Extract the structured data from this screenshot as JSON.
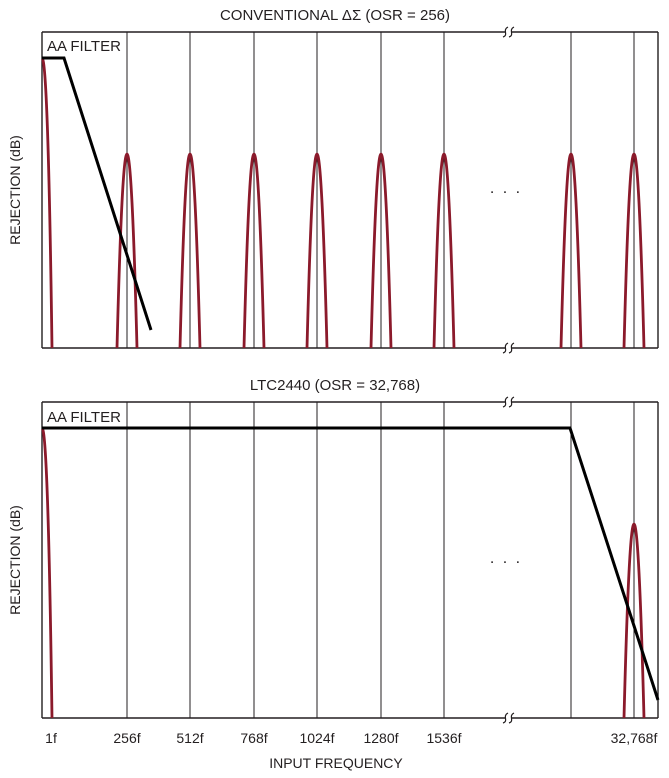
{
  "panels": [
    {
      "id": "conventional",
      "title": "CONVENTIONAL ΔΣ (OSR = 256)",
      "y_axis_label": "REJECTION (dB)",
      "aa_filter_label": "AA FILTER",
      "ellipsis": ". . .",
      "colors": {
        "lobe": "#8b1a2b",
        "aa_filter": "#000000"
      }
    },
    {
      "id": "ltc2440",
      "title": "LTC2440 (OSR = 32,768)",
      "y_axis_label": "REJECTION (dB)",
      "aa_filter_label": "AA FILTER",
      "ellipsis": ". . .",
      "colors": {
        "lobe": "#8b1a2b",
        "aa_filter": "#000000"
      }
    }
  ],
  "x_axis": {
    "label": "INPUT FREQUENCY",
    "ticks": [
      "1f",
      "256f",
      "512f",
      "768f",
      "1024f",
      "1280f",
      "1536f",
      "32,768f"
    ]
  }
}
